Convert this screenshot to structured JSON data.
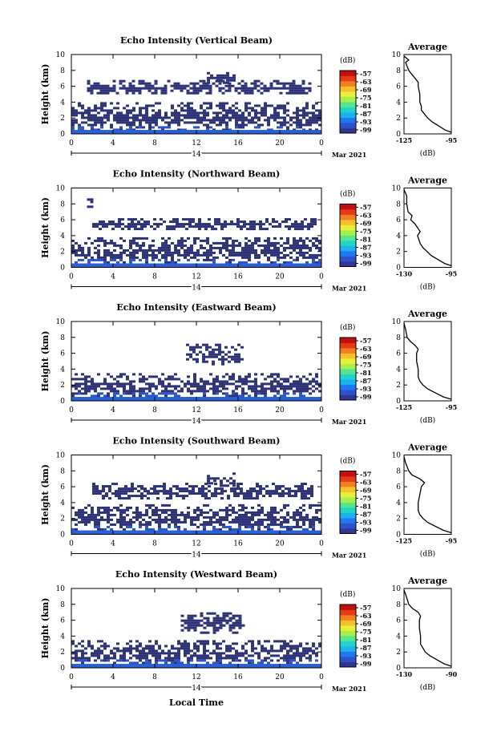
{
  "chart_data": {
    "type": "heatmap",
    "date_label": "14",
    "month_label": "Mar 2021",
    "x_label": "Local Time",
    "y_label": "Height (km)",
    "x_ticks": [
      "0",
      "4",
      "8",
      "12",
      "16",
      "20",
      "0"
    ],
    "x_range": [
      0,
      24
    ],
    "y_ticks": [
      "0",
      "2",
      "4",
      "6",
      "8",
      "10"
    ],
    "y_range": [
      0,
      10
    ],
    "colorbar_unit": "(dB)",
    "colorbar_ticks": [
      "-57",
      "-63",
      "-69",
      "-75",
      "-81",
      "-87",
      "-93",
      "-99"
    ],
    "colorbar_colors": [
      "#313695",
      "#2c53c9",
      "#1f78f0",
      "#1ab3f0",
      "#22d4c8",
      "#55e690",
      "#a7f04c",
      "#e6f03a",
      "#f6c02b",
      "#f27f1f",
      "#e53a17",
      "#c01010"
    ],
    "profile_title": "Average",
    "profile_xlabel": "(dB)",
    "panels": [
      {
        "title": "Echo Intensity (Vertical Beam)",
        "profile_xticks": [
          "-125",
          "-95"
        ],
        "profile_xrange": [
          -125,
          -95
        ],
        "layers": [
          {
            "t": [
              0,
              24
            ],
            "h": [
              0.5,
              4.0
            ]
          },
          {
            "t": [
              1.5,
              23.0
            ],
            "h": [
              5.0,
              6.8
            ]
          },
          {
            "t": [
              13.0,
              15.5
            ],
            "h": [
              6.5,
              7.8
            ]
          }
        ],
        "profile": [
          [
            -95,
            0.2
          ],
          [
            -99,
            0.5
          ],
          [
            -103,
            1
          ],
          [
            -107,
            1.5
          ],
          [
            -110,
            2
          ],
          [
            -112,
            2.5
          ],
          [
            -114,
            3
          ],
          [
            -114,
            3.5
          ],
          [
            -115,
            4
          ],
          [
            -115,
            5
          ],
          [
            -116,
            6
          ],
          [
            -116,
            6.5
          ],
          [
            -118,
            7
          ],
          [
            -120,
            7.5
          ],
          [
            -122,
            8
          ],
          [
            -123,
            8.5
          ],
          [
            -124,
            9
          ],
          [
            -122,
            9.3
          ],
          [
            -125,
            9.8
          ]
        ]
      },
      {
        "title": "Echo Intensity (Northward Beam)",
        "profile_xticks": [
          "-130",
          "-95"
        ],
        "profile_xrange": [
          -130,
          -95
        ],
        "layers": [
          {
            "t": [
              0,
              24
            ],
            "h": [
              0.5,
              3.8
            ]
          },
          {
            "t": [
              2.0,
              23.5
            ],
            "h": [
              4.8,
              6.2
            ]
          },
          {
            "t": [
              1.5,
              2.0
            ],
            "h": [
              7.5,
              9.0
            ]
          }
        ],
        "profile": [
          [
            -95,
            0.2
          ],
          [
            -100,
            0.5
          ],
          [
            -105,
            1
          ],
          [
            -110,
            1.5
          ],
          [
            -113,
            2
          ],
          [
            -116,
            2.5
          ],
          [
            -118,
            3
          ],
          [
            -119,
            3.5
          ],
          [
            -120,
            4
          ],
          [
            -118,
            4.5
          ],
          [
            -120,
            5
          ],
          [
            -122,
            5.5
          ],
          [
            -125,
            6
          ],
          [
            -124,
            6.5
          ],
          [
            -127,
            7
          ],
          [
            -128,
            8
          ],
          [
            -128,
            9
          ],
          [
            -130,
            9.8
          ]
        ]
      },
      {
        "title": "Echo Intensity (Eastward Beam)",
        "profile_xticks": [
          "-125",
          "-95"
        ],
        "profile_xrange": [
          -125,
          -95
        ],
        "layers": [
          {
            "t": [
              0,
              24
            ],
            "h": [
              0.3,
              3.5
            ]
          },
          {
            "t": [
              11.0,
              16.5
            ],
            "h": [
              4.5,
              7.2
            ]
          }
        ],
        "profile": [
          [
            -95,
            0.2
          ],
          [
            -100,
            0.5
          ],
          [
            -105,
            1
          ],
          [
            -110,
            1.5
          ],
          [
            -113,
            2
          ],
          [
            -115,
            2.5
          ],
          [
            -116,
            3
          ],
          [
            -116,
            4
          ],
          [
            -117,
            5
          ],
          [
            -117,
            6
          ],
          [
            -116,
            6.5
          ],
          [
            -118,
            7
          ],
          [
            -121,
            7.5
          ],
          [
            -123,
            8
          ],
          [
            -124,
            9
          ],
          [
            -125,
            9.8
          ]
        ]
      },
      {
        "title": "Echo Intensity (Southward Beam)",
        "profile_xticks": [
          "-125",
          "-95"
        ],
        "profile_xrange": [
          -125,
          -95
        ],
        "layers": [
          {
            "t": [
              0,
              24
            ],
            "h": [
              0.5,
              3.8
            ]
          },
          {
            "t": [
              2.0,
              23.0
            ],
            "h": [
              4.5,
              6.5
            ]
          },
          {
            "t": [
              13.0,
              15.5
            ],
            "h": [
              6.0,
              7.8
            ]
          }
        ],
        "profile": [
          [
            -95,
            0.2
          ],
          [
            -100,
            0.5
          ],
          [
            -105,
            1
          ],
          [
            -110,
            1.5
          ],
          [
            -113,
            2
          ],
          [
            -115,
            2.5
          ],
          [
            -116,
            3
          ],
          [
            -116,
            4
          ],
          [
            -115,
            5
          ],
          [
            -114,
            6
          ],
          [
            -112,
            6.5
          ],
          [
            -115,
            7
          ],
          [
            -120,
            7.5
          ],
          [
            -122,
            8
          ],
          [
            -124,
            9
          ],
          [
            -125,
            9.8
          ]
        ]
      },
      {
        "title": "Echo Intensity (Westward Beam)",
        "profile_xticks": [
          "-130",
          "-90"
        ],
        "profile_xrange": [
          -130,
          -90
        ],
        "layers": [
          {
            "t": [
              0,
              24
            ],
            "h": [
              0.3,
              3.5
            ]
          },
          {
            "t": [
              10.5,
              16.5
            ],
            "h": [
              4.5,
              7.0
            ]
          }
        ],
        "profile": [
          [
            -90,
            0.2
          ],
          [
            -96,
            0.5
          ],
          [
            -102,
            1
          ],
          [
            -108,
            1.5
          ],
          [
            -112,
            2
          ],
          [
            -114,
            2.5
          ],
          [
            -116,
            3
          ],
          [
            -116,
            4
          ],
          [
            -117,
            5
          ],
          [
            -117,
            6
          ],
          [
            -116,
            6.5
          ],
          [
            -118,
            7
          ],
          [
            -123,
            7.5
          ],
          [
            -126,
            8
          ],
          [
            -128,
            9
          ],
          [
            -130,
            9.8
          ]
        ]
      }
    ]
  }
}
